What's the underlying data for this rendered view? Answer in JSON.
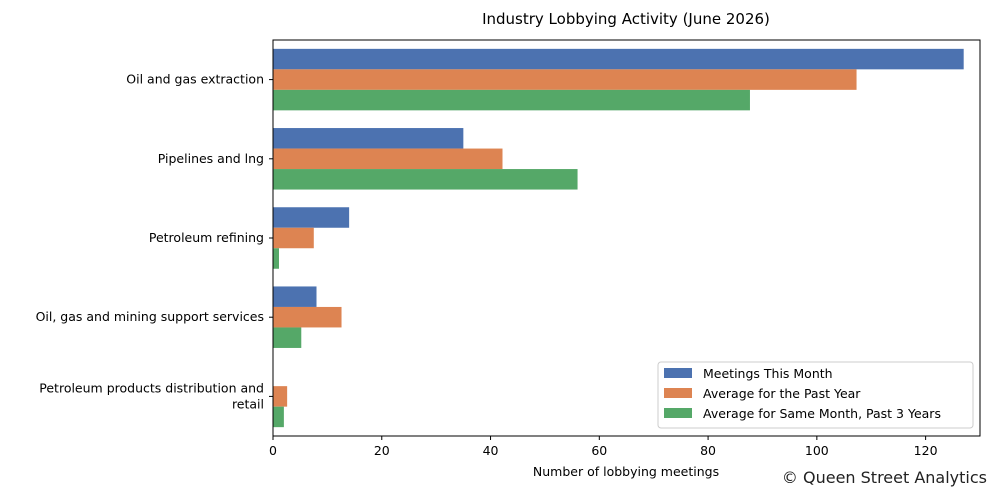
{
  "chart_data": {
    "type": "bar",
    "orientation": "horizontal",
    "title": "Industry Lobbying Activity (June 2026)",
    "xlabel": "Number of lobbying meetings",
    "ylabel": "",
    "xlim": [
      0,
      130
    ],
    "x_ticks": [
      0,
      20,
      40,
      60,
      80,
      100,
      120
    ],
    "categories": [
      "Oil and gas extraction",
      "Pipelines and lng",
      "Petroleum refining",
      "Oil, gas and mining support services",
      "Petroleum products distribution and retail"
    ],
    "category_label_lines": [
      [
        "Oil and gas extraction"
      ],
      [
        "Pipelines and lng"
      ],
      [
        "Petroleum refining"
      ],
      [
        "Oil, gas and mining support services"
      ],
      [
        "Petroleum products distribution and",
        "retail"
      ]
    ],
    "series": [
      {
        "name": "Meetings This Month",
        "color": "#4c72b0",
        "values": [
          127,
          35,
          14,
          8,
          0
        ]
      },
      {
        "name": "Average for the Past Year",
        "color": "#dd8452",
        "values": [
          107.3,
          42.2,
          7.5,
          12.6,
          2.6
        ]
      },
      {
        "name": "Average for Same Month, Past 3 Years",
        "color": "#55a868",
        "values": [
          87.7,
          56,
          1.1,
          5.2,
          2
        ]
      }
    ],
    "legend_position": "lower-right",
    "grid": false
  },
  "credit": "© Queen Street Analytics"
}
